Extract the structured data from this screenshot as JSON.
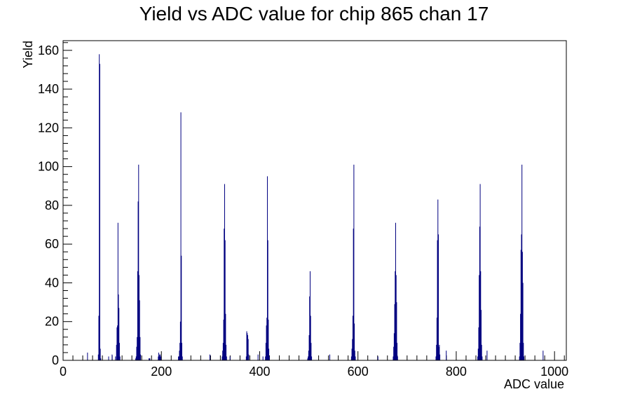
{
  "chart_data": {
    "type": "bar",
    "title": "Yield vs ADC value for chip 865 chan 17",
    "xlabel": "ADC value",
    "ylabel": "Yield",
    "xlim": [
      0,
      1024
    ],
    "ylim": [
      0,
      165
    ],
    "x_ticks": [
      0,
      200,
      400,
      600,
      800,
      1000
    ],
    "y_ticks": [
      0,
      20,
      40,
      60,
      80,
      100,
      120,
      140,
      160
    ],
    "grid": false,
    "legend": "none",
    "colors": {
      "line": "#000080",
      "axis": "#000000",
      "background": "#ffffff"
    },
    "bins": [
      {
        "x": 49,
        "y": 4
      },
      {
        "x": 71,
        "y": 3
      },
      {
        "x": 72,
        "y": 23
      },
      {
        "x": 73,
        "y": 158
      },
      {
        "x": 74,
        "y": 153
      },
      {
        "x": 75,
        "y": 6
      },
      {
        "x": 76,
        "y": 1
      },
      {
        "x": 92,
        "y": 2
      },
      {
        "x": 99,
        "y": 3
      },
      {
        "x": 106,
        "y": 2
      },
      {
        "x": 108,
        "y": 8
      },
      {
        "x": 109,
        "y": 17
      },
      {
        "x": 110,
        "y": 18
      },
      {
        "x": 111,
        "y": 71
      },
      {
        "x": 112,
        "y": 34
      },
      {
        "x": 113,
        "y": 27
      },
      {
        "x": 114,
        "y": 9
      },
      {
        "x": 115,
        "y": 2
      },
      {
        "x": 147,
        "y": 1
      },
      {
        "x": 148,
        "y": 2
      },
      {
        "x": 149,
        "y": 7
      },
      {
        "x": 150,
        "y": 12
      },
      {
        "x": 151,
        "y": 46
      },
      {
        "x": 152,
        "y": 82
      },
      {
        "x": 153,
        "y": 101
      },
      {
        "x": 154,
        "y": 44
      },
      {
        "x": 155,
        "y": 31
      },
      {
        "x": 156,
        "y": 12
      },
      {
        "x": 157,
        "y": 3
      },
      {
        "x": 174,
        "y": 1
      },
      {
        "x": 175,
        "y": 1
      },
      {
        "x": 176,
        "y": 1
      },
      {
        "x": 193,
        "y": 2
      },
      {
        "x": 194,
        "y": 4
      },
      {
        "x": 195,
        "y": 3
      },
      {
        "x": 196,
        "y": 2
      },
      {
        "x": 197,
        "y": 3
      },
      {
        "x": 198,
        "y": 2
      },
      {
        "x": 234,
        "y": 2
      },
      {
        "x": 235,
        "y": 2
      },
      {
        "x": 236,
        "y": 5
      },
      {
        "x": 237,
        "y": 9
      },
      {
        "x": 238,
        "y": 20
      },
      {
        "x": 239,
        "y": 128
      },
      {
        "x": 240,
        "y": 54
      },
      {
        "x": 241,
        "y": 9
      },
      {
        "x": 242,
        "y": 2
      },
      {
        "x": 298,
        "y": 3
      },
      {
        "x": 323,
        "y": 2
      },
      {
        "x": 324,
        "y": 5
      },
      {
        "x": 325,
        "y": 9
      },
      {
        "x": 326,
        "y": 21
      },
      {
        "x": 327,
        "y": 68
      },
      {
        "x": 328,
        "y": 91
      },
      {
        "x": 329,
        "y": 62
      },
      {
        "x": 330,
        "y": 24
      },
      {
        "x": 331,
        "y": 8
      },
      {
        "x": 332,
        "y": 2
      },
      {
        "x": 339,
        "y": 2
      },
      {
        "x": 372,
        "y": 2
      },
      {
        "x": 373,
        "y": 15
      },
      {
        "x": 374,
        "y": 14
      },
      {
        "x": 375,
        "y": 13
      },
      {
        "x": 376,
        "y": 11
      },
      {
        "x": 377,
        "y": 3
      },
      {
        "x": 396,
        "y": 3
      },
      {
        "x": 406,
        "y": 2
      },
      {
        "x": 411,
        "y": 2
      },
      {
        "x": 412,
        "y": 9
      },
      {
        "x": 413,
        "y": 18
      },
      {
        "x": 414,
        "y": 22
      },
      {
        "x": 415,
        "y": 95
      },
      {
        "x": 416,
        "y": 62
      },
      {
        "x": 417,
        "y": 21
      },
      {
        "x": 418,
        "y": 6
      },
      {
        "x": 419,
        "y": 2
      },
      {
        "x": 497,
        "y": 1
      },
      {
        "x": 498,
        "y": 2
      },
      {
        "x": 499,
        "y": 5
      },
      {
        "x": 500,
        "y": 13
      },
      {
        "x": 501,
        "y": 33
      },
      {
        "x": 502,
        "y": 46
      },
      {
        "x": 503,
        "y": 23
      },
      {
        "x": 504,
        "y": 9
      },
      {
        "x": 505,
        "y": 2
      },
      {
        "x": 542,
        "y": 3
      },
      {
        "x": 586,
        "y": 2
      },
      {
        "x": 587,
        "y": 6
      },
      {
        "x": 588,
        "y": 11
      },
      {
        "x": 589,
        "y": 23
      },
      {
        "x": 590,
        "y": 68
      },
      {
        "x": 591,
        "y": 101
      },
      {
        "x": 592,
        "y": 19
      },
      {
        "x": 593,
        "y": 5
      },
      {
        "x": 594,
        "y": 2
      },
      {
        "x": 640,
        "y": 2
      },
      {
        "x": 671,
        "y": 2
      },
      {
        "x": 672,
        "y": 7
      },
      {
        "x": 673,
        "y": 14
      },
      {
        "x": 674,
        "y": 29
      },
      {
        "x": 675,
        "y": 46
      },
      {
        "x": 676,
        "y": 71
      },
      {
        "x": 677,
        "y": 44
      },
      {
        "x": 678,
        "y": 30
      },
      {
        "x": 679,
        "y": 9
      },
      {
        "x": 680,
        "y": 2
      },
      {
        "x": 758,
        "y": 2
      },
      {
        "x": 759,
        "y": 8
      },
      {
        "x": 760,
        "y": 22
      },
      {
        "x": 761,
        "y": 62
      },
      {
        "x": 762,
        "y": 83
      },
      {
        "x": 763,
        "y": 65
      },
      {
        "x": 764,
        "y": 7
      },
      {
        "x": 765,
        "y": 8
      },
      {
        "x": 766,
        "y": 3
      },
      {
        "x": 779,
        "y": 5
      },
      {
        "x": 843,
        "y": 2
      },
      {
        "x": 844,
        "y": 6
      },
      {
        "x": 845,
        "y": 17
      },
      {
        "x": 846,
        "y": 44
      },
      {
        "x": 847,
        "y": 69
      },
      {
        "x": 848,
        "y": 91
      },
      {
        "x": 849,
        "y": 46
      },
      {
        "x": 850,
        "y": 26
      },
      {
        "x": 851,
        "y": 8
      },
      {
        "x": 852,
        "y": 2
      },
      {
        "x": 862,
        "y": 5
      },
      {
        "x": 928,
        "y": 2
      },
      {
        "x": 929,
        "y": 9
      },
      {
        "x": 930,
        "y": 24
      },
      {
        "x": 931,
        "y": 57
      },
      {
        "x": 932,
        "y": 65
      },
      {
        "x": 933,
        "y": 101
      },
      {
        "x": 934,
        "y": 56
      },
      {
        "x": 935,
        "y": 40
      },
      {
        "x": 936,
        "y": 9
      },
      {
        "x": 937,
        "y": 2
      },
      {
        "x": 976,
        "y": 5
      }
    ]
  }
}
